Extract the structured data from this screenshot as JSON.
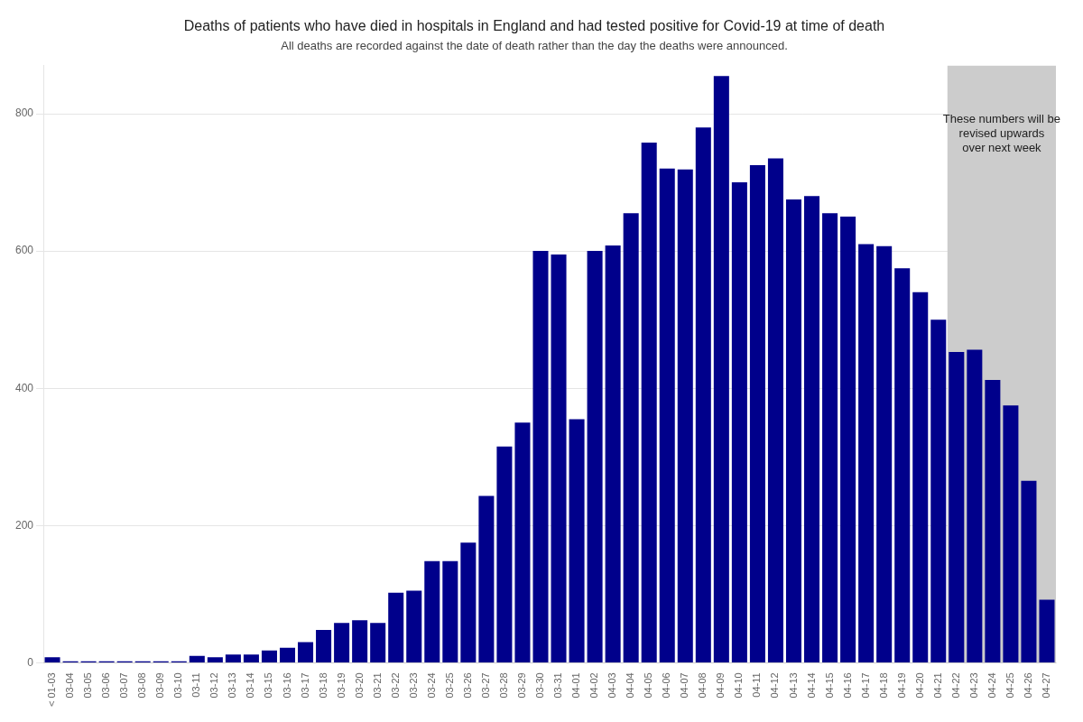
{
  "chart_data": {
    "type": "bar",
    "title": "Deaths of patients who have died in hospitals in England and had tested positive for Covid-19 at time of death",
    "subtitle": "All deaths are recorded against the date of death rather than the day the deaths were announced.",
    "color": "#00008B",
    "categories": [
      "< 01-03",
      "03-04",
      "03-05",
      "03-06",
      "03-07",
      "03-08",
      "03-09",
      "03-10",
      "03-11",
      "03-12",
      "03-13",
      "03-14",
      "03-15",
      "03-16",
      "03-17",
      "03-18",
      "03-19",
      "03-20",
      "03-21",
      "03-22",
      "03-23",
      "03-24",
      "03-25",
      "03-26",
      "03-27",
      "03-28",
      "03-29",
      "03-30",
      "03-31",
      "04-01",
      "04-02",
      "04-03",
      "04-04",
      "04-05",
      "04-06",
      "04-07",
      "04-08",
      "04-09",
      "04-10",
      "04-11",
      "04-12",
      "04-13",
      "04-14",
      "04-15",
      "04-16",
      "04-17",
      "04-18",
      "04-19",
      "04-20",
      "04-21",
      "04-22",
      "04-23",
      "04-24",
      "04-25",
      "04-26",
      "04-27"
    ],
    "values": [
      8,
      2,
      2,
      2,
      2,
      2,
      2,
      2,
      10,
      8,
      12,
      12,
      18,
      22,
      30,
      48,
      58,
      62,
      58,
      102,
      105,
      148,
      148,
      175,
      243,
      315,
      350,
      600,
      595,
      355,
      600,
      608,
      655,
      758,
      720,
      719,
      780,
      855,
      700,
      725,
      735,
      675,
      680,
      655,
      650,
      610,
      607,
      575,
      540,
      500,
      453,
      456,
      412,
      375,
      265,
      92
    ],
    "ylim": [
      0,
      870
    ],
    "yticks": [
      0,
      200,
      400,
      600,
      800
    ],
    "grid": true,
    "annotation": {
      "text": "These numbers will be\nrevised upwards\nover next week",
      "x_start": "04-22",
      "x_end": "04-27",
      "y": 800,
      "color": "#CCCCCC"
    }
  }
}
